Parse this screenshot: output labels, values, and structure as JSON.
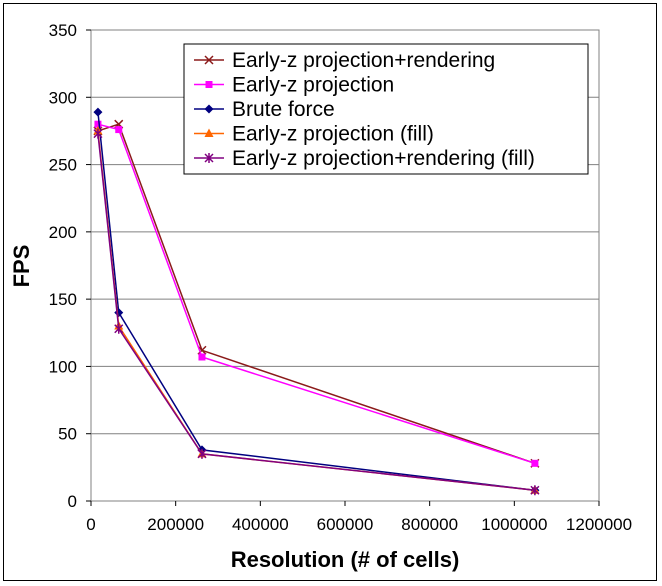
{
  "chart_data": {
    "type": "line",
    "title": "",
    "xlabel": "Resolution (# of cells)",
    "ylabel": "FPS",
    "xlim": [
      0,
      1200000
    ],
    "ylim": [
      0,
      350
    ],
    "xticks": [
      "0",
      "200000",
      "400000",
      "600000",
      "800000",
      "1000000",
      "1200000"
    ],
    "yticks": [
      "0",
      "50",
      "100",
      "150",
      "200",
      "250",
      "300",
      "350"
    ],
    "grid": "horizontal",
    "legend_position": "top-right",
    "x": [
      16384,
      65536,
      262144,
      1048576
    ],
    "series": [
      {
        "name": "Early-z projection+rendering",
        "color": "#8B1A1A",
        "marker": "x",
        "values": [
          275,
          280,
          112,
          28
        ]
      },
      {
        "name": "Early-z projection",
        "color": "#FF00FF",
        "marker": "square",
        "values": [
          280,
          276,
          107,
          28
        ]
      },
      {
        "name": "Brute force",
        "color": "#000080",
        "marker": "diamond",
        "values": [
          289,
          140,
          38,
          8
        ]
      },
      {
        "name": "Early-z projection (fill)",
        "color": "#FF6600",
        "marker": "triangle",
        "values": [
          275,
          130,
          35,
          8
        ]
      },
      {
        "name": "Early-z projection+rendering (fill)",
        "color": "#800080",
        "marker": "star",
        "values": [
          273,
          128,
          35,
          8
        ]
      }
    ]
  }
}
